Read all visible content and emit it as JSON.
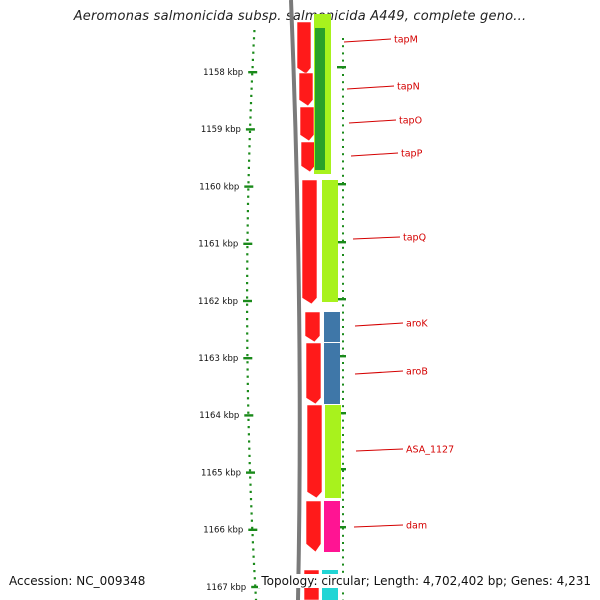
{
  "title": "Aeromonas salmonicida subsp. salmonicida A449, complete geno...",
  "footer": {
    "accession": "Accession: NC_009348",
    "summary": "Topology: circular; Length: 4,702,402 bp; Genes: 4,231"
  },
  "colors": {
    "cds_strand": "#ff1a1a",
    "gene_lime": "#a8f21d",
    "gene_green": "#2aa12a",
    "gene_steel": "#3f77a8",
    "gene_magenta": "#ff1493",
    "gene_cyan": "#22d5d5",
    "backbone": "#7a7a7a",
    "ruler": "#1a8a1a",
    "label": "#d40000"
  },
  "ruler": {
    "unit": "kbp",
    "labels": [
      "1158 kbp",
      "1159 kbp",
      "1160 kbp",
      "1161 kbp",
      "1162 kbp",
      "1163 kbp",
      "1164 kbp",
      "1165 kbp",
      "1166 kbp",
      "1167 kbp"
    ]
  },
  "genes": [
    "tapM",
    "tapN",
    "tapO",
    "tapP",
    "tapQ",
    "aroK",
    "aroB",
    "ASA_1127",
    "dam"
  ]
}
